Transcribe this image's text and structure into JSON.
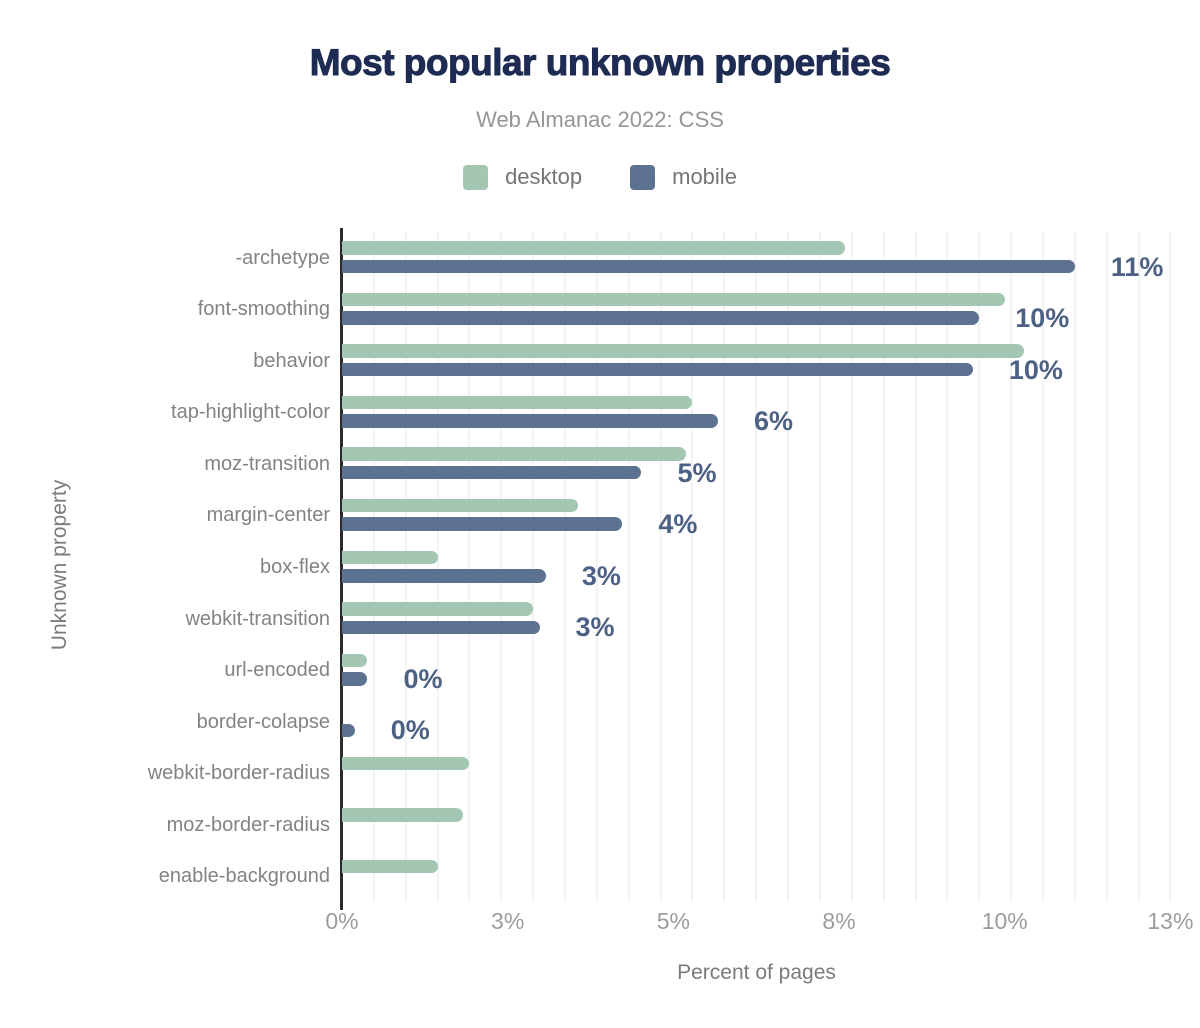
{
  "header": {
    "title": "Most popular unknown properties",
    "subtitle": "Web Almanac 2022: CSS"
  },
  "legend": [
    {
      "label": "desktop",
      "color": "#a4c7b3"
    },
    {
      "label": "mobile",
      "color": "#5d7190"
    }
  ],
  "colors": {
    "desktop_bar": "#a4c7b3",
    "mobile_bar": "#5d7190",
    "value_label": "#4d6185",
    "title": "#1e2c54",
    "axis_line": "#2b2b2b",
    "gridline": "#f3f3f3"
  },
  "axes": {
    "y_title": "Unknown property",
    "x_title": "Percent of pages",
    "x_ticks": [
      {
        "label": "0%",
        "value": 0
      },
      {
        "label": "3%",
        "value": 2.6
      },
      {
        "label": "5%",
        "value": 5.2
      },
      {
        "label": "8%",
        "value": 7.8
      },
      {
        "label": "10%",
        "value": 10.4
      },
      {
        "label": "13%",
        "value": 13
      }
    ]
  },
  "chart_data": {
    "type": "bar",
    "orientation": "horizontal",
    "title": "Most popular unknown properties",
    "subtitle": "Web Almanac 2022: CSS",
    "xlabel": "Percent of pages",
    "ylabel": "Unknown property",
    "xlim": [
      0,
      13
    ],
    "grid": true,
    "legend_position": "top",
    "categories": [
      "-archetype",
      "font-smoothing",
      "behavior",
      "tap-highlight-color",
      "moz-transition",
      "margin-center",
      "box-flex",
      "webkit-transition",
      "url-encoded",
      "border-colapse",
      "webkit-border-radius",
      "moz-border-radius",
      "enable-background"
    ],
    "series": [
      {
        "name": "desktop",
        "color": "#a4c7b3",
        "values": [
          7.9,
          10.4,
          10.7,
          5.5,
          5.4,
          3.7,
          1.5,
          3.0,
          0.4,
          null,
          2.0,
          1.9,
          1.5
        ]
      },
      {
        "name": "mobile",
        "color": "#5d7190",
        "values": [
          11.5,
          10.0,
          9.9,
          5.9,
          4.7,
          4.4,
          3.2,
          3.1,
          0.4,
          0.2,
          null,
          null,
          null
        ]
      }
    ],
    "annotations": [
      "11%",
      "10%",
      "10%",
      "6%",
      "5%",
      "4%",
      "3%",
      "3%",
      "0%",
      "0%",
      null,
      null,
      null
    ]
  }
}
